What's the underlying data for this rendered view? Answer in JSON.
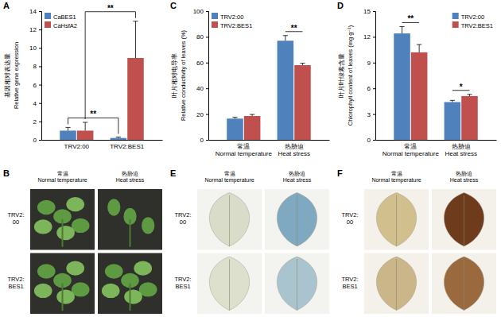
{
  "chart_data": [
    {
      "type": "bar",
      "title": "A",
      "ylabel": "基因相对表达量\nRelative gene expression",
      "categories": [
        "TRV2:00",
        "TRV2:BES1"
      ],
      "series": [
        {
          "name": "CaBES1",
          "color": "#4f81bd",
          "values": [
            1.0,
            0.2
          ],
          "errors": [
            0.35,
            0.1
          ]
        },
        {
          "name": "CaHsfA2",
          "color": "#c0504d",
          "values": [
            1.0,
            8.9
          ],
          "errors": [
            0.9,
            4.0
          ]
        }
      ],
      "ylim": [
        0,
        14
      ],
      "yticks": [
        0,
        2,
        4,
        6,
        8,
        10,
        12,
        14
      ],
      "legend": "top-left",
      "annotations": [
        {
          "text": "**",
          "series": "CaBES1"
        },
        {
          "text": "**",
          "series": "CaHsfA2"
        }
      ]
    },
    {
      "type": "bar",
      "title": "C",
      "ylabel": "叶片相对电导率\nRelative conductivity of leaves (%)",
      "categories": [
        "常温\nNormal temperature",
        "热胁迫\nHeat stress"
      ],
      "series": [
        {
          "name": "TRV2:00",
          "color": "#4f81bd",
          "values": [
            16.5,
            77
          ],
          "errors": [
            1,
            4
          ]
        },
        {
          "name": "TRV2:BES1",
          "color": "#c0504d",
          "values": [
            18.5,
            58
          ],
          "errors": [
            1.2,
            1.5
          ]
        }
      ],
      "ylim": [
        0,
        100
      ],
      "yticks": [
        0,
        20,
        40,
        60,
        80,
        100
      ],
      "legend": "top-left",
      "annotations": [
        {
          "text": "**",
          "category": "热胁迫\nHeat stress"
        }
      ]
    },
    {
      "type": "bar",
      "title": "D",
      "ylabel": "叶片叶绿素含量\nChlorophyll content of leaves (mg g⁻¹)",
      "categories": [
        "常温\nNormal temperature",
        "热胁迫\nHeat stress"
      ],
      "series": [
        {
          "name": "TRV2:00",
          "color": "#4f81bd",
          "values": [
            12.4,
            4.4
          ],
          "errors": [
            0.8,
            0.2
          ]
        },
        {
          "name": "TRV2:BES1",
          "color": "#c0504d",
          "values": [
            10.2,
            5.1
          ],
          "errors": [
            0.9,
            0.2
          ]
        }
      ],
      "ylim": [
        0,
        15
      ],
      "yticks": [
        0,
        3,
        6,
        9,
        12,
        15
      ],
      "legend": "top-right",
      "annotations": [
        {
          "text": "**",
          "category": "常温\nNormal temperature"
        },
        {
          "text": "*",
          "category": "热胁迫\nHeat stress"
        }
      ]
    }
  ],
  "image_panels": [
    {
      "title": "B",
      "columns": [
        "常温\nNormal temperature",
        "热胁迫\nHeat stress"
      ],
      "rows": [
        "TRV2:\n00",
        "TRV2:\nBES1"
      ]
    },
    {
      "title": "E",
      "columns": [
        "常温\nNormal temperature",
        "热胁迫\nHeat stress"
      ],
      "rows": [
        "TRV2:\n00",
        "TRV2:\nBES1"
      ]
    },
    {
      "title": "F",
      "columns": [
        "常温\nNormal temperature",
        "热胁迫\nHeat stress"
      ],
      "rows": [
        "TRV2:\n00",
        "TRV2:\nBES1"
      ]
    }
  ]
}
